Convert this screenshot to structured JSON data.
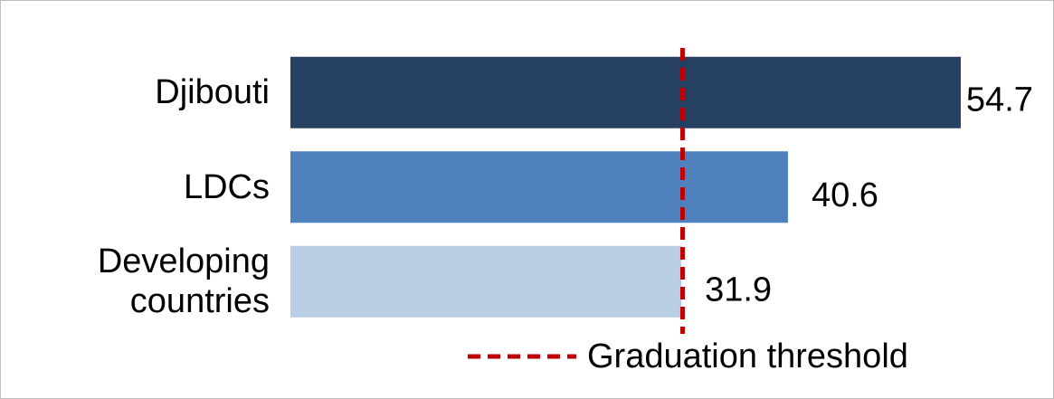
{
  "chart_data": {
    "type": "barh",
    "categories": [
      "Djibouti",
      "LDCs",
      "Developing countries"
    ],
    "values": [
      54.7,
      40.6,
      31.9
    ],
    "colors": [
      "#264063",
      "#4f81bd",
      "#b9cde5"
    ],
    "xlim": [
      0,
      55
    ],
    "threshold": {
      "name": "Graduation threshold",
      "value": 32,
      "color": "#c00000"
    },
    "legend": "bottom"
  }
}
